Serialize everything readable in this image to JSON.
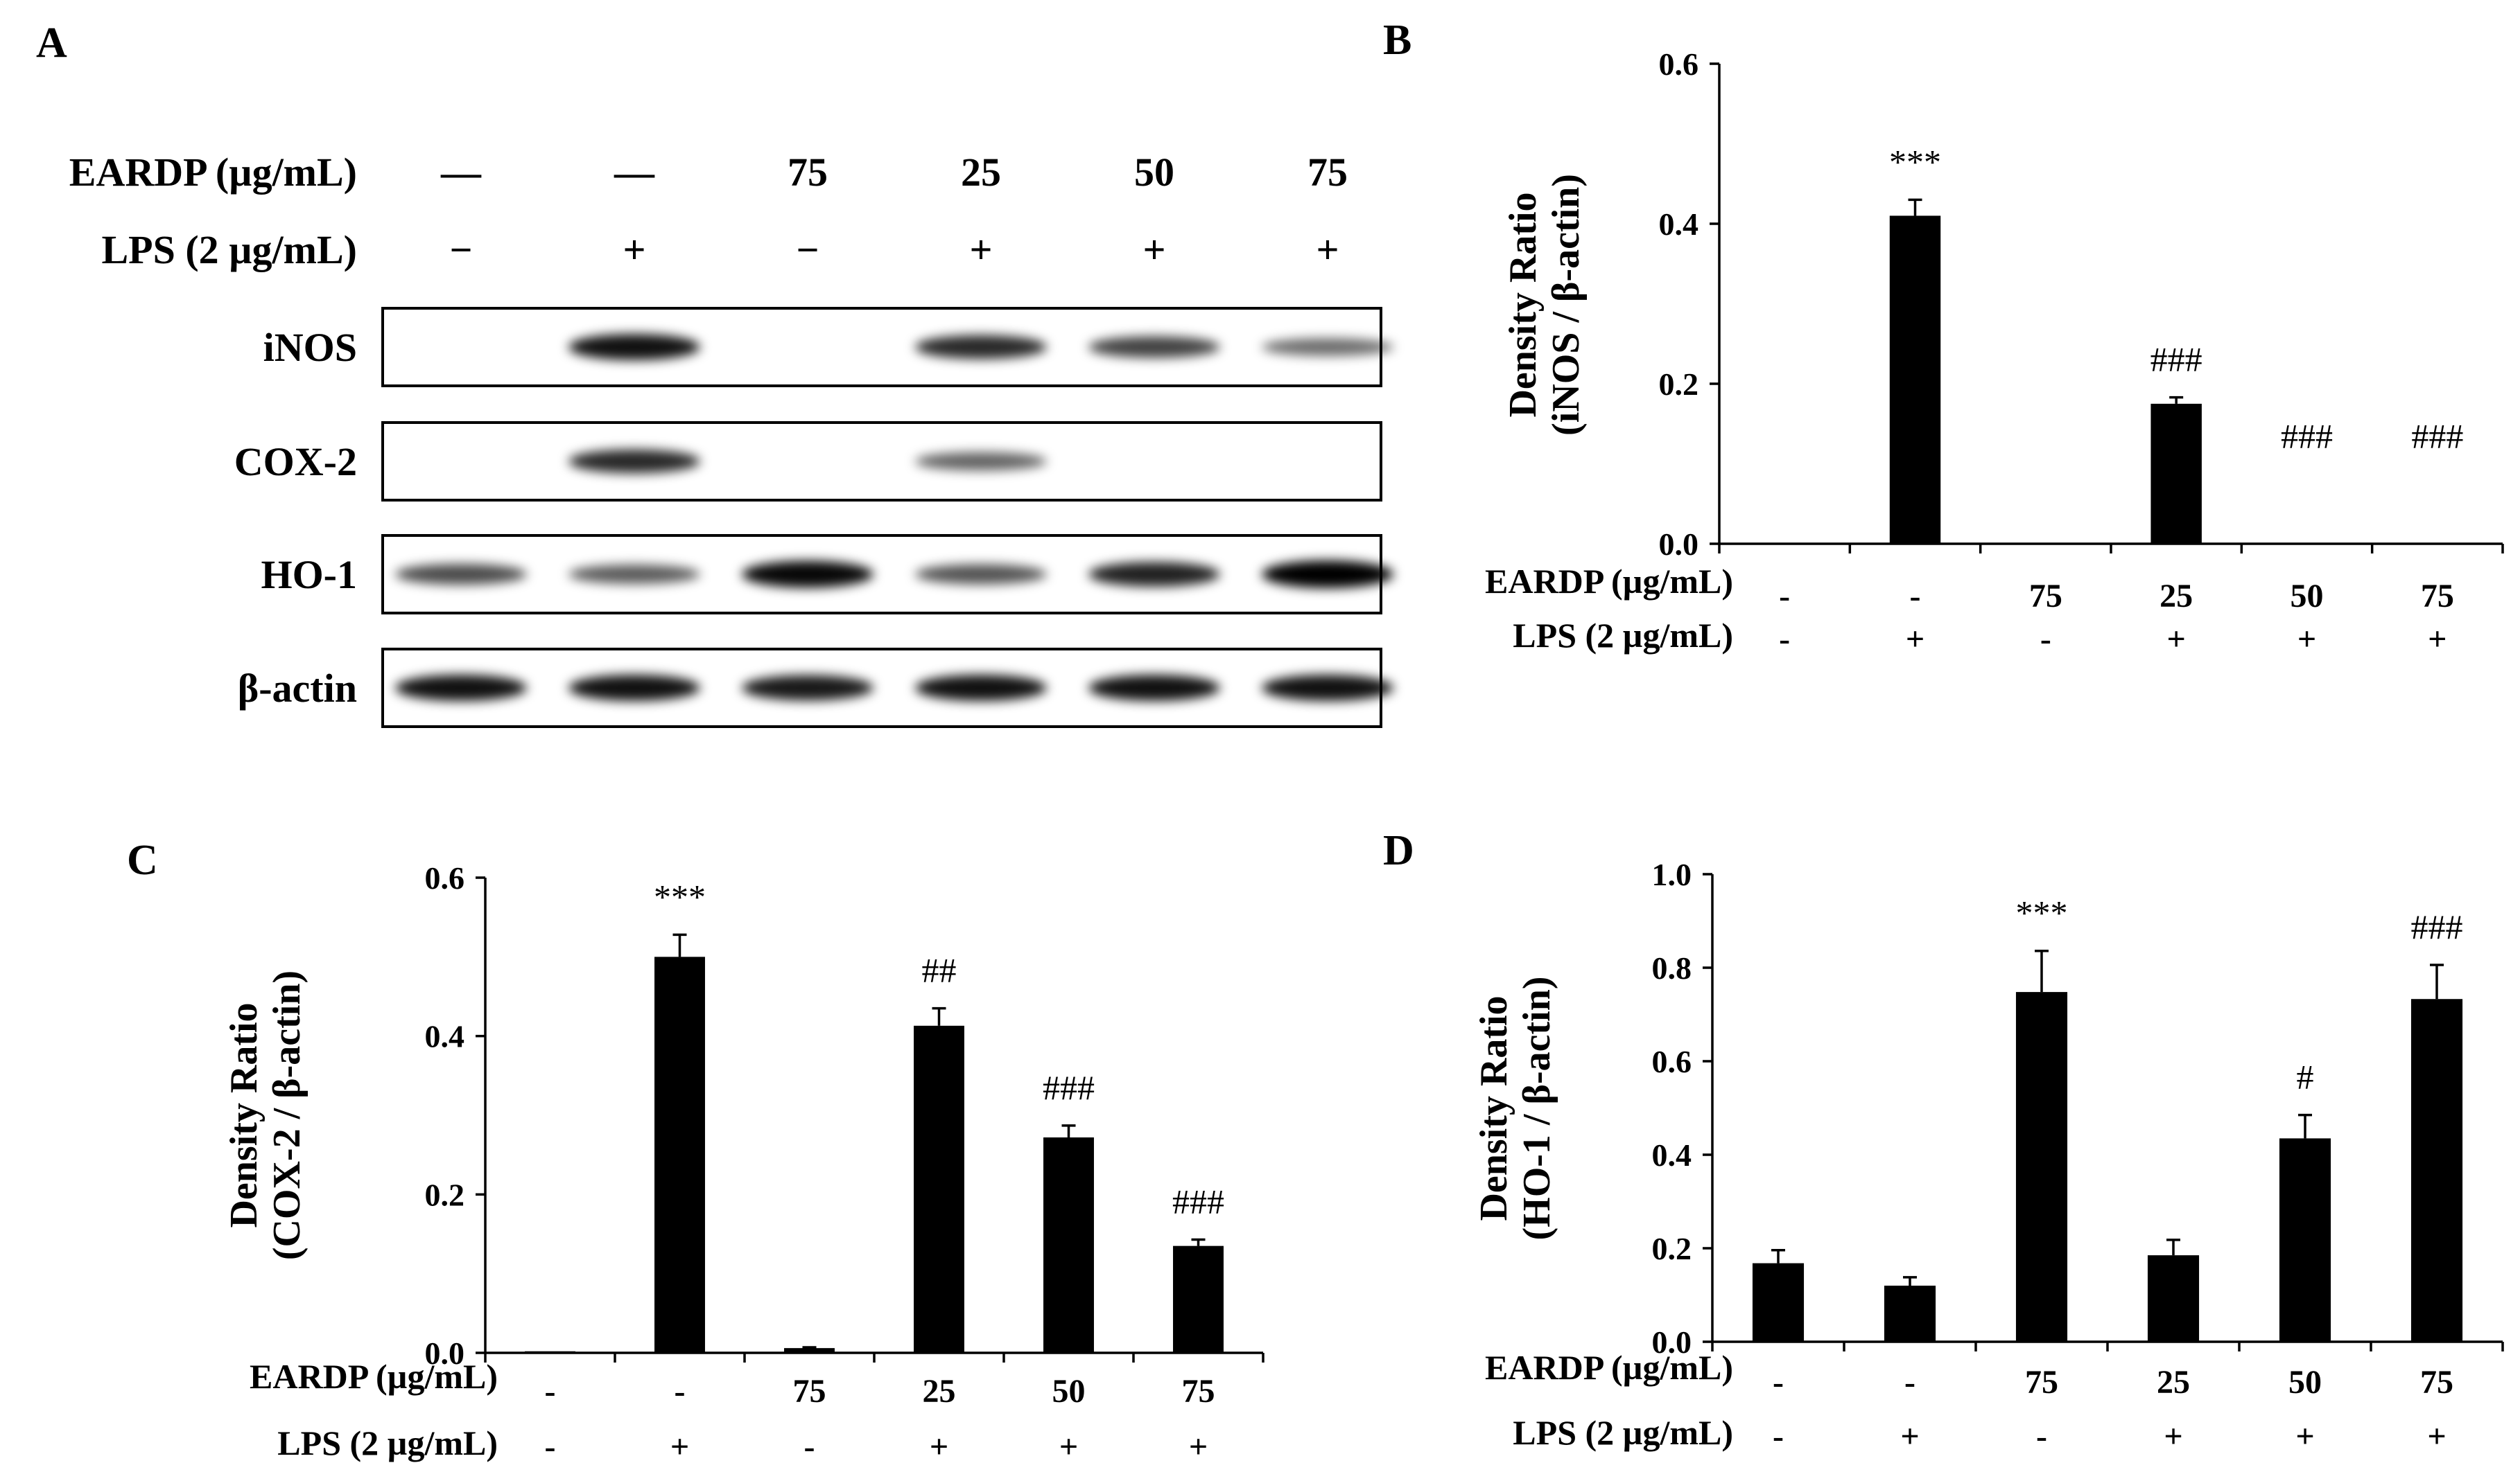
{
  "panels": {
    "A": "A",
    "B": "B",
    "C": "C",
    "D": "D"
  },
  "blot": {
    "treatment_rows": [
      {
        "label": "EARDP (µg/mL)",
        "values": [
          "—",
          "—",
          "75",
          "25",
          "50",
          "75"
        ]
      },
      {
        "label": "LPS (2 µg/mL)",
        "values": [
          "−",
          "+",
          "−",
          "+",
          "+",
          "+"
        ]
      }
    ],
    "band_rows": [
      "iNOS",
      "COX-2",
      "HO-1",
      "β-actin"
    ],
    "band_intensity": {
      "iNOS": [
        0,
        0.9,
        0,
        0.75,
        0.6,
        0.35
      ],
      "COX-2": [
        0,
        0.75,
        0,
        0.4,
        0,
        0
      ],
      "HO-1": [
        0.55,
        0.45,
        0.95,
        0.5,
        0.8,
        1.0
      ],
      "β-actin": [
        0.9,
        0.9,
        0.85,
        0.9,
        0.9,
        0.9
      ]
    }
  },
  "chart_data": [
    {
      "panel": "B",
      "type": "bar",
      "ylabel_line1": "Density  Ratio",
      "ylabel_line2": "(iNOS / β-actin)",
      "ylim": [
        0,
        0.6
      ],
      "yticks": [
        "0.0",
        "0.2",
        "0.4",
        "0.6"
      ],
      "categories": [
        {
          "eardp": "-",
          "lps": "-"
        },
        {
          "eardp": "-",
          "lps": "+"
        },
        {
          "eardp": "75",
          "lps": "-"
        },
        {
          "eardp": "25",
          "lps": "+"
        },
        {
          "eardp": "50",
          "lps": "+"
        },
        {
          "eardp": "75",
          "lps": "+"
        }
      ],
      "row_labels": [
        "EARDP (µg/mL)",
        "LPS (2 µg/mL)"
      ],
      "values": [
        0,
        0.41,
        0,
        0.175,
        0,
        0
      ],
      "errors": [
        0,
        0.02,
        0,
        0.008,
        0,
        0
      ],
      "annotations": [
        "",
        "***",
        "",
        "###",
        "###",
        "###"
      ]
    },
    {
      "panel": "C",
      "type": "bar",
      "ylabel_line1": "Density  Ratio",
      "ylabel_line2": "(COX-2 / β-actin)",
      "ylim": [
        0,
        0.6
      ],
      "yticks": [
        "0.0",
        "0.2",
        "0.4",
        "0.6"
      ],
      "categories": [
        {
          "eardp": "-",
          "lps": "-"
        },
        {
          "eardp": "-",
          "lps": "+"
        },
        {
          "eardp": "75",
          "lps": "-"
        },
        {
          "eardp": "25",
          "lps": "+"
        },
        {
          "eardp": "50",
          "lps": "+"
        },
        {
          "eardp": "75",
          "lps": "+"
        }
      ],
      "row_labels": [
        "EARDP (µg/mL)",
        "LPS (2 µg/mL)"
      ],
      "values": [
        0.002,
        0.5,
        0.006,
        0.413,
        0.272,
        0.135
      ],
      "errors": [
        0,
        0.028,
        0.001,
        0.022,
        0.015,
        0.008
      ],
      "annotations": [
        "",
        "***",
        "",
        "##",
        "###",
        "###"
      ]
    },
    {
      "panel": "D",
      "type": "bar",
      "ylabel_line1": "Density  Ratio",
      "ylabel_line2": "(HO-1 / β-actin)",
      "ylim": [
        0,
        1.0
      ],
      "yticks": [
        "0.0",
        "0.2",
        "0.4",
        "0.6",
        "0.8",
        "1.0"
      ],
      "categories": [
        {
          "eardp": "-",
          "lps": "-"
        },
        {
          "eardp": "-",
          "lps": "+"
        },
        {
          "eardp": "75",
          "lps": "-"
        },
        {
          "eardp": "25",
          "lps": "+"
        },
        {
          "eardp": "50",
          "lps": "+"
        },
        {
          "eardp": "75",
          "lps": "+"
        }
      ],
      "row_labels": [
        "EARDP (µg/mL)",
        "LPS (2 µg/mL)"
      ],
      "values": [
        0.168,
        0.12,
        0.748,
        0.185,
        0.435,
        0.733
      ],
      "errors": [
        0.028,
        0.018,
        0.088,
        0.033,
        0.05,
        0.073
      ],
      "annotations": [
        "",
        "",
        "***",
        "",
        "#",
        "###"
      ]
    }
  ]
}
